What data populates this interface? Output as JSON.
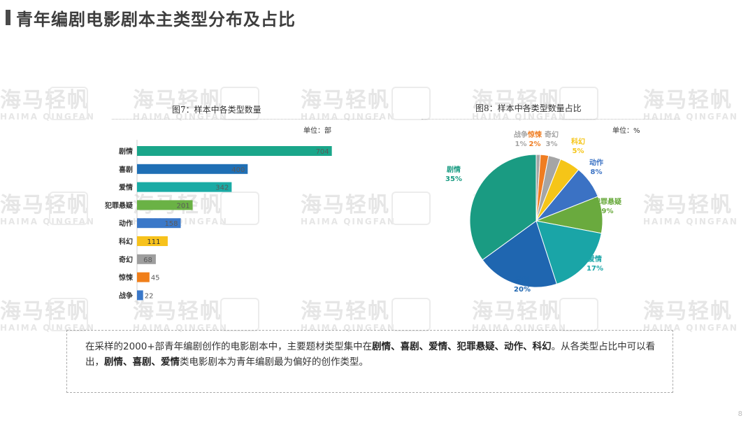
{
  "page": {
    "title": "青年编剧电影剧本主类型分布及占比",
    "page_number": "8"
  },
  "watermark": {
    "brand_zh": "海马轻帆",
    "brand_en": "HAIMA QINGFAN",
    "logo_text": "凡影"
  },
  "note": {
    "p1": "在采样的2000+部青年编剧创作的电影剧本中，主要题材类型集中在",
    "b1": "剧情、喜剧、爱情、犯罪悬疑、动作、科幻",
    "p2": "。从各类型占比中可以看出，",
    "b2": "剧情、喜剧、爱情",
    "p3": "类电影剧本为青年编剧最为偏好的创作类型。"
  },
  "chart_data": [
    {
      "type": "bar",
      "orientation": "horizontal",
      "title": "图7：样本中各类型数量",
      "unit": "单位：部",
      "categories": [
        "剧情",
        "喜剧",
        "爱情",
        "犯罪悬疑",
        "动作",
        "科幻",
        "奇幻",
        "惊悚",
        "战争"
      ],
      "values": [
        704,
        400,
        342,
        201,
        158,
        111,
        68,
        45,
        22
      ],
      "value_labels": [
        "704",
        "400",
        "342",
        "201",
        "158",
        "111",
        "68",
        "45",
        "22"
      ],
      "colors": [
        "#1aa68a",
        "#1f6fb5",
        "#1aaba5",
        "#6ab245",
        "#3a78c9",
        "#f7c21c",
        "#9e9e9e",
        "#f07f1a",
        "#3a78c9"
      ],
      "xlim": [
        0,
        720
      ]
    },
    {
      "type": "pie",
      "title": "图8：样本中各类型数量占比",
      "unit": "单位：%",
      "slices": [
        {
          "label": "战争",
          "value": 1,
          "display": "1%",
          "color": "#a5a5a5"
        },
        {
          "label": "惊悚",
          "value": 2,
          "display": "2%",
          "color": "#ef7d22"
        },
        {
          "label": "奇幻",
          "value": 3,
          "display": "3%",
          "color": "#a5a5a5"
        },
        {
          "label": "科幻",
          "value": 5,
          "display": "5%",
          "color": "#f5c518"
        },
        {
          "label": "动作",
          "value": 8,
          "display": "8%",
          "color": "#3b72c4"
        },
        {
          "label": "犯罪悬疑",
          "value": 9,
          "display": "9%",
          "color": "#6aaa3e"
        },
        {
          "label": "爱情",
          "value": 17,
          "display": "17%",
          "color": "#1aa5a7"
        },
        {
          "label": "喜剧",
          "value": 20,
          "display": "20%",
          "color": "#1f66b0"
        },
        {
          "label": "剧情",
          "value": 35,
          "display": "35%",
          "color": "#1a9b82"
        }
      ]
    }
  ]
}
